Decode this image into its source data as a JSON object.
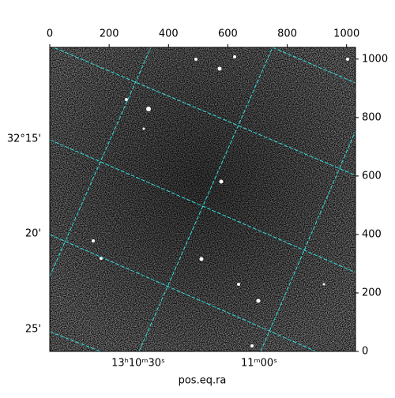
{
  "chart_data": {
    "type": "image",
    "xlabel": "pos.eq.ra",
    "xlim": [
      0,
      1030
    ],
    "xticks": [
      0,
      200,
      400,
      600,
      800,
      1000
    ],
    "ylim": [
      0,
      1040
    ],
    "yticks": [
      0,
      200,
      400,
      600,
      800,
      1000
    ],
    "ra_tick_labels": [
      "13ʰ10ᵐ30ˢ",
      "11ᵐ00ˢ"
    ],
    "dec_tick_labels": [
      "32°15'",
      "20'",
      "25'"
    ],
    "grid_color": "#33dddd"
  }
}
